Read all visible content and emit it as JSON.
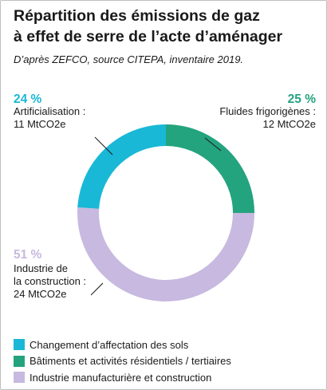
{
  "header": {
    "title_line1": "Répartition des émissions de gaz",
    "title_line2": "à effet de serre de l’acte d’aménager",
    "subtitle": "D’après ZEFCO, source CITEPA, inventaire 2019."
  },
  "chart_data": {
    "type": "pie",
    "donut": true,
    "unit": "MtCO2e",
    "slices": [
      {
        "percent_label": "25 %",
        "percent": 25,
        "value": 12,
        "label_lines": [
          "Fluides frigorigènes :",
          "12 MtCO2e"
        ],
        "legend": "Bâtiments et activités résidentiels / tertiaires",
        "color": "#24a37f"
      },
      {
        "percent_label": "51 %",
        "percent": 51,
        "value": 24,
        "label_lines": [
          "Industrie de",
          "la construction :",
          "24 MtCO2e"
        ],
        "legend": "Industrie manufacturière et construction",
        "color": "#c7b9df"
      },
      {
        "percent_label": "24 %",
        "percent": 24,
        "value": 11,
        "label_lines": [
          "Artificialisation :",
          "11 MtCO2e"
        ],
        "legend": "Changement d’affectation des sols",
        "color": "#19b8d6"
      }
    ],
    "legend_placement": "bottom"
  },
  "legend": {
    "items": [
      {
        "label": "Changement d’affectation des sols",
        "color": "#19b8d6"
      },
      {
        "label": "Bâtiments et activités résidentiels / tertiaires",
        "color": "#24a37f"
      },
      {
        "label": "Industrie manufacturière et construction",
        "color": "#c7b9df"
      }
    ]
  }
}
